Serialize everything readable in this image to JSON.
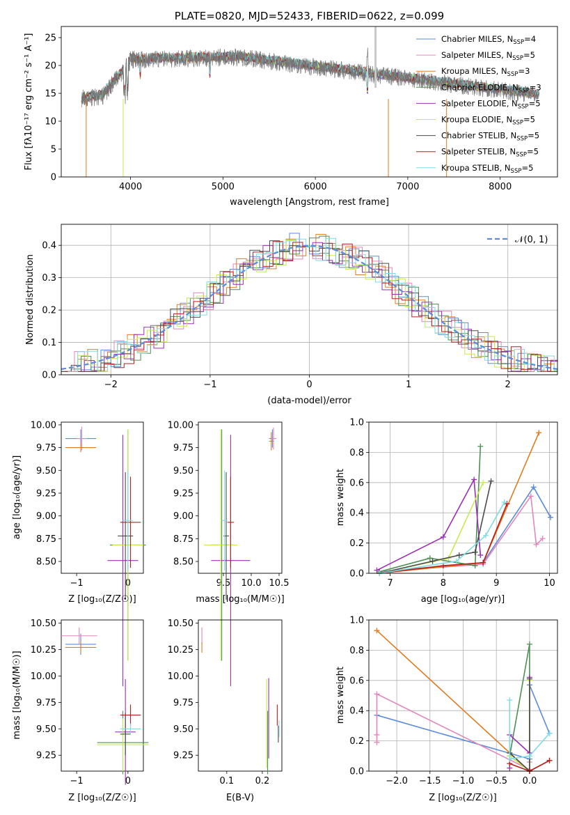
{
  "colors": {
    "chabrier_miles": "#5b8bd9",
    "salpeter_miles": "#e386bb",
    "kroupa_miles": "#e07b20",
    "chabrier_elodie": "#4e8f55",
    "salpeter_elodie": "#9a2fb5",
    "kroupa_elodie": "#c8ea4e",
    "chabrier_stelib": "#4a4a4a",
    "salpeter_stelib": "#b51e1e",
    "kroupa_stelib": "#7fdbe0",
    "data": "#777777"
  },
  "spectrum": {
    "title": "PLATE=0820, MJD=52433, FIBERID=0622, z=0.099",
    "xlabel": "wavelength [Angstrom, rest frame]",
    "ylabel": "Flux [fλ10⁻¹⁷ erg cm⁻² s⁻¹ A⁻¹]",
    "xlim": [
      3250,
      8620
    ],
    "ylim": [
      0,
      27
    ],
    "xticks": [
      "4000",
      "5000",
      "6000",
      "7000",
      "8000"
    ],
    "yticks": [
      "0",
      "5",
      "10",
      "15",
      "20",
      "25"
    ],
    "legend": [
      {
        "label": "Chabrier MILES, N",
        "sub": "SSP",
        "tail": "=4",
        "color_key": "chabrier_miles"
      },
      {
        "label": "Salpeter MILES, N",
        "sub": "SSP",
        "tail": "=5",
        "color_key": "salpeter_miles"
      },
      {
        "label": "Kroupa MILES, N",
        "sub": "SSP",
        "tail": "=3",
        "color_key": "kroupa_miles"
      },
      {
        "label": "Chabrier ELODIE, N",
        "sub": "SSP",
        "tail": "=3",
        "color_key": "chabrier_elodie"
      },
      {
        "label": "Salpeter ELODIE, N",
        "sub": "SSP",
        "tail": "=5",
        "color_key": "salpeter_elodie"
      },
      {
        "label": "Kroupa ELODIE, N",
        "sub": "SSP",
        "tail": "=5",
        "color_key": "kroupa_elodie"
      },
      {
        "label": "Chabrier STELIB, N",
        "sub": "SSP",
        "tail": "=5",
        "color_key": "chabrier_stelib"
      },
      {
        "label": "Salpeter STELIB, N",
        "sub": "SSP",
        "tail": "=5",
        "color_key": "salpeter_stelib"
      },
      {
        "label": "Kroupa STELIB, N",
        "sub": "SSP",
        "tail": "=5",
        "color_key": "kroupa_stelib"
      }
    ]
  },
  "residuals": {
    "xlabel": "(data-model)/error",
    "ylabel": "Normed distribution",
    "xlim": [
      -2.5,
      2.5
    ],
    "ylim": [
      0,
      0.465
    ],
    "xticks": [
      "−2",
      "−1",
      "0",
      "1",
      "2"
    ],
    "yticks": [
      "0.0",
      "0.1",
      "0.2",
      "0.3",
      "0.4"
    ],
    "legend": "𝒩(0, 1)"
  },
  "chart_data": [
    {
      "type": "line",
      "title": "PLATE=0820, MJD=52433, FIBERID=0622, z=0.099",
      "xlabel": "wavelength [Angstrom, rest frame]",
      "ylabel": "Flux [fλ10⁻¹⁷ erg cm⁻² s⁻¹ A⁻¹]",
      "note_features": [
        {
          "x": 3500,
          "y": 14
        },
        {
          "x": 3700,
          "y": 14.5
        },
        {
          "x": 4000,
          "y": 21
        },
        {
          "x": 4200,
          "y": 21.5
        },
        {
          "x": 4861,
          "y": 20
        },
        {
          "x": 5000,
          "y": 21
        },
        {
          "x": 5500,
          "y": 20
        },
        {
          "x": 6000,
          "y": 19
        },
        {
          "x": 6500,
          "y": 18
        },
        {
          "x": 7000,
          "y": 16.5
        },
        {
          "x": 7500,
          "y": 15.5
        },
        {
          "x": 8000,
          "y": 15
        },
        {
          "x": 8400,
          "y": 14.5
        }
      ]
    },
    {
      "type": "line",
      "xlabel": "(data-model)/error",
      "ylabel": "Normed distribution",
      "series": [
        {
          "name": "𝒩(0, 1)",
          "mean": 0,
          "sigma": 1
        }
      ]
    },
    {
      "type": "scatter",
      "xlabel": "Z [log10(Z/Z☉)]",
      "ylabel": "age  [log10(age/yr)]",
      "xlim": [
        -1.3,
        0.3
      ],
      "ylim": [
        8.37,
        10.03
      ],
      "points": [
        {
          "key": "chabrier_miles",
          "x": -0.92,
          "y": 9.85,
          "xerr": 0.3,
          "yerr": 0.1
        },
        {
          "key": "salpeter_miles",
          "x": -0.9,
          "y": 9.85,
          "xerr": 0.1,
          "yerr": 0.13
        },
        {
          "key": "kroupa_miles",
          "x": -0.92,
          "y": 9.75,
          "xerr": 0.3,
          "yerr": 0.05
        },
        {
          "key": "chabrier_elodie",
          "x": 0.0,
          "y": 8.68,
          "xerr": 0.35,
          "yerr": 1.27
        },
        {
          "key": "salpeter_elodie",
          "x": -0.1,
          "y": 8.51,
          "xerr": 0.3,
          "yerr": 1.38
        },
        {
          "key": "kroupa_elodie",
          "x": 0.0,
          "y": 8.68,
          "xerr": 0.3,
          "yerr": 1.27
        },
        {
          "key": "chabrier_stelib",
          "x": -0.05,
          "y": 8.78,
          "xerr": 0.15,
          "yerr": 0.7
        },
        {
          "key": "salpeter_stelib",
          "x": 0.05,
          "y": 8.93,
          "xerr": 0.2,
          "yerr": 0.5
        },
        {
          "key": "kroupa_stelib",
          "x": 0.0,
          "y": 8.95,
          "xerr": 0.1,
          "yerr": 0.55
        }
      ],
      "xticks": [
        "−1",
        "0"
      ],
      "yticks": [
        "8.50",
        "8.75",
        "9.00",
        "9.25",
        "9.50",
        "9.75",
        "10.00"
      ]
    },
    {
      "type": "scatter",
      "xlabel": "mass [log10(M/M☉)]",
      "xlim": [
        9.05,
        10.55
      ],
      "ylim": [
        8.37,
        10.03
      ],
      "points": [
        {
          "key": "chabrier_miles",
          "x": 10.38,
          "y": 9.85,
          "xerr": 0.06,
          "yerr": 0.1
        },
        {
          "key": "salpeter_miles",
          "x": 10.4,
          "y": 9.85,
          "xerr": 0.05,
          "yerr": 0.12
        },
        {
          "key": "kroupa_miles",
          "x": 10.36,
          "y": 9.82,
          "xerr": 0.04,
          "yerr": 0.1
        },
        {
          "key": "chabrier_elodie",
          "x": 9.47,
          "y": 8.68,
          "xerr": 0.2,
          "yerr": 1.27
        },
        {
          "key": "salpeter_elodie",
          "x": 9.63,
          "y": 8.51,
          "xerr": 0.35,
          "yerr": 1.38
        },
        {
          "key": "kroupa_elodie",
          "x": 9.45,
          "y": 8.68,
          "xerr": 0.3,
          "yerr": 1.27
        },
        {
          "key": "chabrier_stelib",
          "x": 9.55,
          "y": 8.78,
          "xerr": 0.05,
          "yerr": 0.7
        },
        {
          "key": "salpeter_stelib",
          "x": 9.63,
          "y": 8.93,
          "xerr": 0.06,
          "yerr": 0.5
        },
        {
          "key": "kroupa_stelib",
          "x": 9.52,
          "y": 8.95,
          "xerr": 0.05,
          "yerr": 0.55
        }
      ],
      "xticks": [
        "9.5",
        "10.0",
        "10.5"
      ],
      "yticks": [
        "8.50",
        "8.75",
        "9.00",
        "9.25",
        "9.50",
        "9.75",
        "10.00"
      ]
    },
    {
      "type": "line",
      "xlabel": "age  [log10(age/yr)]",
      "ylabel": "mass weight",
      "xlim": [
        6.6,
        10.15
      ],
      "ylim": [
        0,
        1.0
      ],
      "series": [
        {
          "key": "chabrier_miles",
          "x": [
            6.8,
            8.75,
            9.7,
            10.02
          ],
          "y": [
            0.01,
            0.07,
            0.57,
            0.37
          ]
        },
        {
          "key": "salpeter_miles",
          "x": [
            6.8,
            8.75,
            9.65,
            9.75,
            9.87
          ],
          "y": [
            0.01,
            0.06,
            0.51,
            0.19,
            0.23
          ]
        },
        {
          "key": "kroupa_miles",
          "x": [
            6.8,
            8.75,
            9.8
          ],
          "y": [
            0.0,
            0.07,
            0.93
          ]
        },
        {
          "key": "chabrier_elodie",
          "x": [
            6.8,
            7.75,
            8.6,
            8.7
          ],
          "y": [
            0.01,
            0.1,
            0.05,
            0.84
          ]
        },
        {
          "key": "salpeter_elodie",
          "x": [
            6.75,
            8.0,
            8.58,
            8.7
          ],
          "y": [
            0.02,
            0.24,
            0.62,
            0.12
          ]
        },
        {
          "key": "kroupa_elodie",
          "x": [
            6.8,
            8.1,
            8.75
          ],
          "y": [
            0.0,
            0.1,
            0.6
          ]
        },
        {
          "key": "chabrier_stelib",
          "x": [
            6.8,
            7.8,
            8.3,
            8.6,
            8.9
          ],
          "y": [
            0.0,
            0.08,
            0.12,
            0.14,
            0.61
          ]
        },
        {
          "key": "salpeter_stelib",
          "x": [
            6.8,
            8.0,
            8.75,
            9.2
          ],
          "y": [
            0.0,
            0.05,
            0.07,
            0.46
          ]
        },
        {
          "key": "kroupa_stelib",
          "x": [
            6.8,
            8.25,
            8.8,
            9.15
          ],
          "y": [
            0.0,
            0.08,
            0.25,
            0.47
          ]
        }
      ],
      "xticks": [
        "7",
        "8",
        "9",
        "10"
      ],
      "yticks": [
        "0.0",
        "0.2",
        "0.4",
        "0.6",
        "0.8",
        "1.0"
      ]
    },
    {
      "type": "scatter",
      "xlabel": "Z [log10(Z/Z☉)]",
      "ylabel": "mass [log10(M/M☉)]",
      "xlim": [
        -1.3,
        0.3
      ],
      "ylim": [
        9.1,
        10.53
      ],
      "points": [
        {
          "key": "chabrier_miles",
          "x": -0.92,
          "y": 10.3,
          "xerr": 0.3,
          "yerr": 0.1
        },
        {
          "key": "salpeter_miles",
          "x": -0.95,
          "y": 10.38,
          "xerr": 0.35,
          "yerr": 0.08
        },
        {
          "key": "kroupa_miles",
          "x": -0.92,
          "y": 10.27,
          "xerr": 0.3,
          "yerr": 0.05
        },
        {
          "key": "chabrier_elodie",
          "x": -0.1,
          "y": 9.37,
          "xerr": 0.5,
          "yerr": 0.3
        },
        {
          "key": "salpeter_elodie",
          "x": -0.05,
          "y": 9.47,
          "xerr": 0.2,
          "yerr": 0.5
        },
        {
          "key": "kroupa_elodie",
          "x": -0.1,
          "y": 9.35,
          "xerr": 0.5,
          "yerr": 0.25
        },
        {
          "key": "chabrier_stelib",
          "x": -0.05,
          "y": 9.45,
          "xerr": 0.1,
          "yerr": 0.2
        },
        {
          "key": "salpeter_stelib",
          "x": 0.05,
          "y": 9.63,
          "xerr": 0.2,
          "yerr": 0.1
        },
        {
          "key": "kroupa_stelib",
          "x": 0.05,
          "y": 9.5,
          "xerr": 0.2,
          "yerr": 0.05
        }
      ],
      "xticks": [
        "−1",
        "0"
      ],
      "yticks": [
        "9.25",
        "9.50",
        "9.75",
        "10.00",
        "10.25",
        "10.50"
      ]
    },
    {
      "type": "scatter",
      "xlabel": "E(B-V)",
      "xlim": [
        0.02,
        0.255
      ],
      "ylim": [
        9.1,
        10.53
      ],
      "points": [
        {
          "key": "salpeter_miles",
          "x": 0.03,
          "y": 10.38,
          "xerr": 0,
          "yerr": 0.08
        },
        {
          "key": "kroupa_miles",
          "x": 0.03,
          "y": 10.27,
          "xerr": 0,
          "yerr": 0.05
        },
        {
          "key": "chabrier_elodie",
          "x": 0.215,
          "y": 9.37,
          "xerr": 0,
          "yerr": 0.3
        },
        {
          "key": "salpeter_elodie",
          "x": 0.218,
          "y": 9.6,
          "xerr": 0,
          "yerr": 0.38
        },
        {
          "key": "kroupa_elodie",
          "x": 0.212,
          "y": 9.55,
          "xerr": 0,
          "yerr": 0.42
        },
        {
          "key": "chabrier_stelib",
          "x": 0.245,
          "y": 9.45,
          "xerr": 0,
          "yerr": 0.08
        },
        {
          "key": "salpeter_stelib",
          "x": 0.242,
          "y": 9.63,
          "xerr": 0,
          "yerr": 0.1
        },
        {
          "key": "kroupa_stelib",
          "x": 0.247,
          "y": 9.5,
          "xerr": 0,
          "yerr": 0.08
        }
      ],
      "xticks": [
        "0.1",
        "0.2"
      ],
      "yticks": [
        "9.25",
        "9.50",
        "9.75",
        "10.00",
        "10.25",
        "10.50"
      ]
    },
    {
      "type": "line",
      "xlabel": "Z [log10(Z/Z☉)]",
      "ylabel": "mass weight",
      "xlim": [
        -2.42,
        0.42
      ],
      "ylim": [
        0,
        1.0
      ],
      "series": [
        {
          "key": "chabrier_miles",
          "x": [
            -2.3,
            0.0,
            0.0,
            0.3
          ],
          "y": [
            0.37,
            0.08,
            0.57,
            0.25
          ]
        },
        {
          "key": "salpeter_miles",
          "x": [
            -2.3,
            -2.3,
            -2.3,
            0.0,
            0.0
          ],
          "y": [
            0.24,
            0.19,
            0.51,
            0.01,
            0.06
          ]
        },
        {
          "key": "kroupa_miles",
          "x": [
            -2.3,
            0.0,
            0.3
          ],
          "y": [
            0.93,
            0.0,
            0.07
          ]
        },
        {
          "key": "chabrier_elodie",
          "x": [
            0.0,
            0.0,
            -0.3
          ],
          "y": [
            0.0,
            0.84,
            0.1
          ]
        },
        {
          "key": "salpeter_elodie",
          "x": [
            -0.3,
            -0.3,
            0.0,
            0.0
          ],
          "y": [
            0.02,
            0.24,
            0.12,
            0.62
          ]
        },
        {
          "key": "kroupa_elodie",
          "x": [
            -0.3,
            0.0,
            0.0
          ],
          "y": [
            0.1,
            0.0,
            0.6
          ]
        },
        {
          "key": "chabrier_stelib",
          "x": [
            -0.3,
            0.0,
            0.0
          ],
          "y": [
            0.12,
            0.0,
            0.61
          ]
        },
        {
          "key": "salpeter_stelib",
          "x": [
            -0.3,
            0.0,
            0.3
          ],
          "y": [
            0.05,
            0.0,
            0.07
          ]
        },
        {
          "key": "kroupa_stelib",
          "x": [
            -0.3,
            -0.3,
            0.0,
            0.3
          ],
          "y": [
            0.47,
            0.08,
            0.1,
            0.25
          ]
        }
      ],
      "xticks": [
        "−2.0",
        "−1.5",
        "−1.0",
        "−0.5",
        "0.0"
      ],
      "yticks": [
        "0.0",
        "0.2",
        "0.4",
        "0.6",
        "0.8",
        "1.0"
      ]
    }
  ]
}
